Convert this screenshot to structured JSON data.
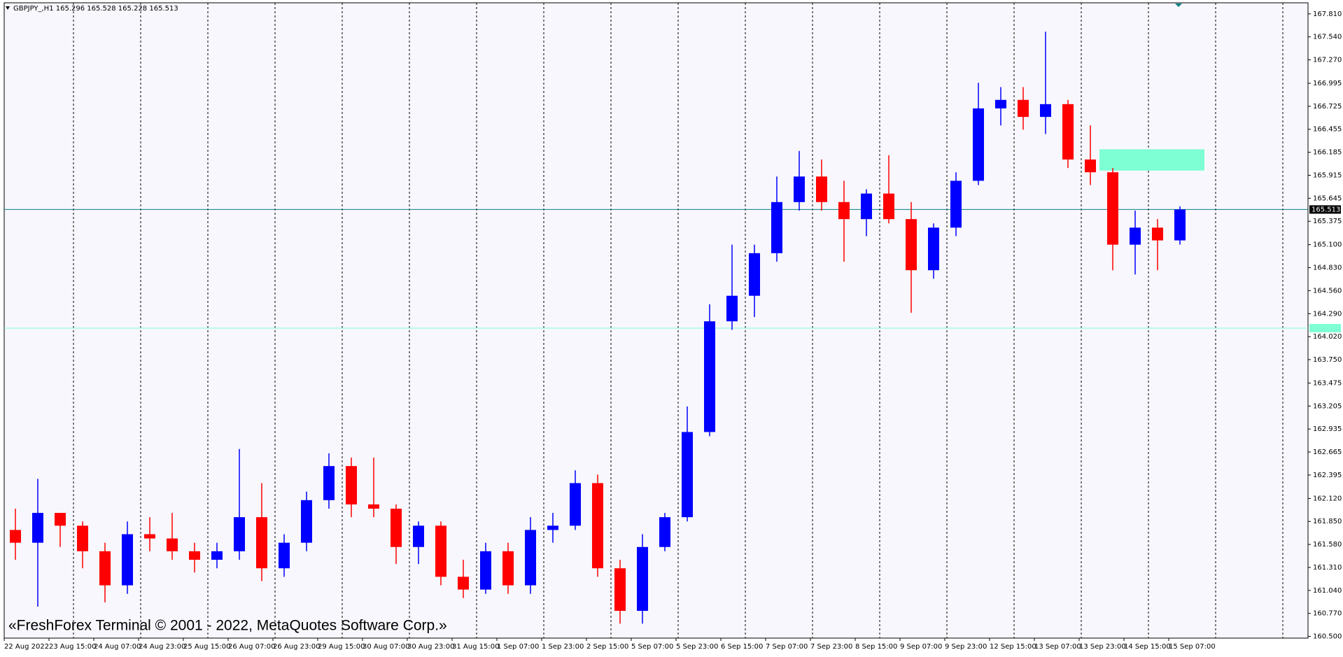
{
  "chart_data": {
    "type": "candlestick",
    "title": "GBPJPY_,H1  165.296 165.528 165.228 165.513",
    "annotation": "«FreshForex Terminal © 2001 - 2022, MetaQuotes Software Corp.»",
    "bull_color": "#0000ff",
    "bear_color": "#ff0000",
    "categories": [
      "22 Aug 2022",
      null,
      "23 Aug 15:00",
      null,
      "24 Aug 07:00",
      null,
      "24 Aug 23:00",
      null,
      "25 Aug 15:00",
      null,
      "26 Aug 07:00",
      null,
      "26 Aug 23:00",
      null,
      "29 Aug 15:00",
      null,
      "30 Aug 07:00",
      null,
      "30 Aug 23:00",
      null,
      "31 Aug 15:00",
      null,
      "1 Sep 07:00",
      null,
      "1 Sep 23:00",
      null,
      "2 Sep 15:00",
      null,
      "5 Sep 07:00",
      null,
      "5 Sep 23:00",
      null,
      "6 Sep 15:00",
      null,
      "7 Sep 07:00",
      null,
      "7 Sep 23:00",
      null,
      "8 Sep 15:00",
      null,
      "9 Sep 07:00",
      null,
      "9 Sep 23:00",
      null,
      "12 Sep 15:00",
      null,
      "13 Sep 07:00",
      null,
      "13 Sep 23:00",
      null,
      "14 Sep 15:00",
      null,
      "15 Sep 07:00"
    ],
    "open": [
      161.75,
      161.6,
      161.95,
      161.8,
      161.5,
      161.1,
      161.7,
      161.65,
      161.5,
      161.4,
      161.5,
      161.9,
      161.3,
      161.6,
      162.1,
      162.5,
      162.05,
      162.0,
      161.55,
      161.8,
      161.2,
      161.05,
      161.5,
      161.1,
      161.75,
      161.8,
      162.3,
      161.3,
      160.8,
      161.55,
      161.9,
      162.9,
      164.2,
      164.5,
      165.0,
      165.6,
      165.9,
      165.6,
      165.4,
      165.7,
      165.4,
      164.8,
      165.3,
      165.85,
      166.7,
      166.8,
      166.6,
      166.75,
      166.1,
      165.95,
      165.1,
      165.3,
      165.15
    ],
    "high": [
      162.0,
      162.35,
      161.95,
      161.85,
      161.6,
      161.85,
      161.9,
      161.95,
      161.6,
      161.6,
      162.7,
      162.3,
      161.7,
      162.2,
      162.65,
      162.6,
      162.6,
      162.05,
      161.85,
      161.85,
      161.4,
      161.6,
      161.6,
      161.9,
      161.95,
      162.45,
      162.4,
      161.4,
      161.7,
      161.95,
      163.2,
      164.4,
      165.1,
      165.1,
      165.9,
      166.2,
      166.1,
      165.85,
      165.75,
      166.15,
      165.6,
      165.35,
      165.95,
      167.0,
      166.95,
      166.95,
      167.6,
      166.8,
      166.5,
      166.0,
      165.5,
      165.4,
      165.55
    ],
    "low": [
      161.4,
      160.85,
      161.55,
      161.3,
      160.9,
      161.0,
      161.5,
      161.4,
      161.25,
      161.3,
      161.4,
      161.15,
      161.2,
      161.5,
      162.0,
      161.9,
      161.9,
      161.35,
      161.35,
      161.1,
      160.95,
      161.0,
      161.0,
      161.0,
      161.6,
      161.75,
      161.2,
      160.65,
      160.65,
      161.5,
      161.85,
      162.85,
      164.1,
      164.25,
      164.9,
      165.5,
      165.5,
      164.9,
      165.2,
      165.35,
      164.3,
      164.7,
      165.2,
      165.8,
      166.5,
      166.45,
      166.4,
      166.0,
      165.8,
      164.8,
      164.75,
      164.8,
      165.1
    ],
    "close": [
      161.6,
      161.95,
      161.8,
      161.5,
      161.1,
      161.7,
      161.65,
      161.5,
      161.4,
      161.5,
      161.9,
      161.3,
      161.6,
      162.1,
      162.5,
      162.05,
      162.0,
      161.55,
      161.8,
      161.2,
      161.05,
      161.5,
      161.1,
      161.75,
      161.8,
      162.3,
      161.3,
      160.8,
      161.55,
      161.9,
      162.9,
      164.2,
      164.5,
      165.0,
      165.6,
      165.9,
      165.6,
      165.4,
      165.7,
      165.4,
      164.8,
      165.3,
      165.85,
      166.7,
      166.8,
      166.6,
      166.75,
      166.1,
      165.95,
      165.1,
      165.3,
      165.15,
      165.513
    ],
    "ylim": [
      160.48,
      167.94
    ],
    "yticks": [
      {
        "value": 160.5,
        "label": "160.500"
      },
      {
        "value": 160.77,
        "label": "160.770"
      },
      {
        "value": 161.04,
        "label": "161.040"
      },
      {
        "value": 161.31,
        "label": "161.310"
      },
      {
        "value": 161.58,
        "label": "161.580"
      },
      {
        "value": 161.85,
        "label": "161.850"
      },
      {
        "value": 162.12,
        "label": "162.120"
      },
      {
        "value": 162.395,
        "label": "162.395"
      },
      {
        "value": 162.665,
        "label": "162.665"
      },
      {
        "value": 162.935,
        "label": "162.935"
      },
      {
        "value": 163.205,
        "label": "163.205"
      },
      {
        "value": 163.475,
        "label": "163.475"
      },
      {
        "value": 163.75,
        "label": "163.750"
      },
      {
        "value": 164.02,
        "label": "164.020"
      },
      {
        "value": 164.29,
        "label": "164.290"
      },
      {
        "value": 164.56,
        "label": "164.560"
      },
      {
        "value": 164.83,
        "label": "164.830"
      },
      {
        "value": 165.1,
        "label": "165.100"
      },
      {
        "value": 165.375,
        "label": "165.375"
      },
      {
        "value": 165.645,
        "label": "165.645"
      },
      {
        "value": 165.915,
        "label": "165.915"
      },
      {
        "value": 166.185,
        "label": "166.185"
      },
      {
        "value": 166.455,
        "label": "166.455"
      },
      {
        "value": 166.725,
        "label": "166.725"
      },
      {
        "value": 166.995,
        "label": "166.995"
      },
      {
        "value": 167.27,
        "label": "167.270"
      },
      {
        "value": 167.54,
        "label": "167.540"
      },
      {
        "value": 167.81,
        "label": "167.810"
      }
    ],
    "hlines": [
      {
        "value": 165.513,
        "label": "165.513",
        "color": "#0a7f86"
      },
      {
        "value": 164.12,
        "color": "#7fffd4"
      }
    ],
    "zones": [
      {
        "low": 165.97,
        "high": 166.22,
        "color": "#7fffd4"
      }
    ]
  }
}
